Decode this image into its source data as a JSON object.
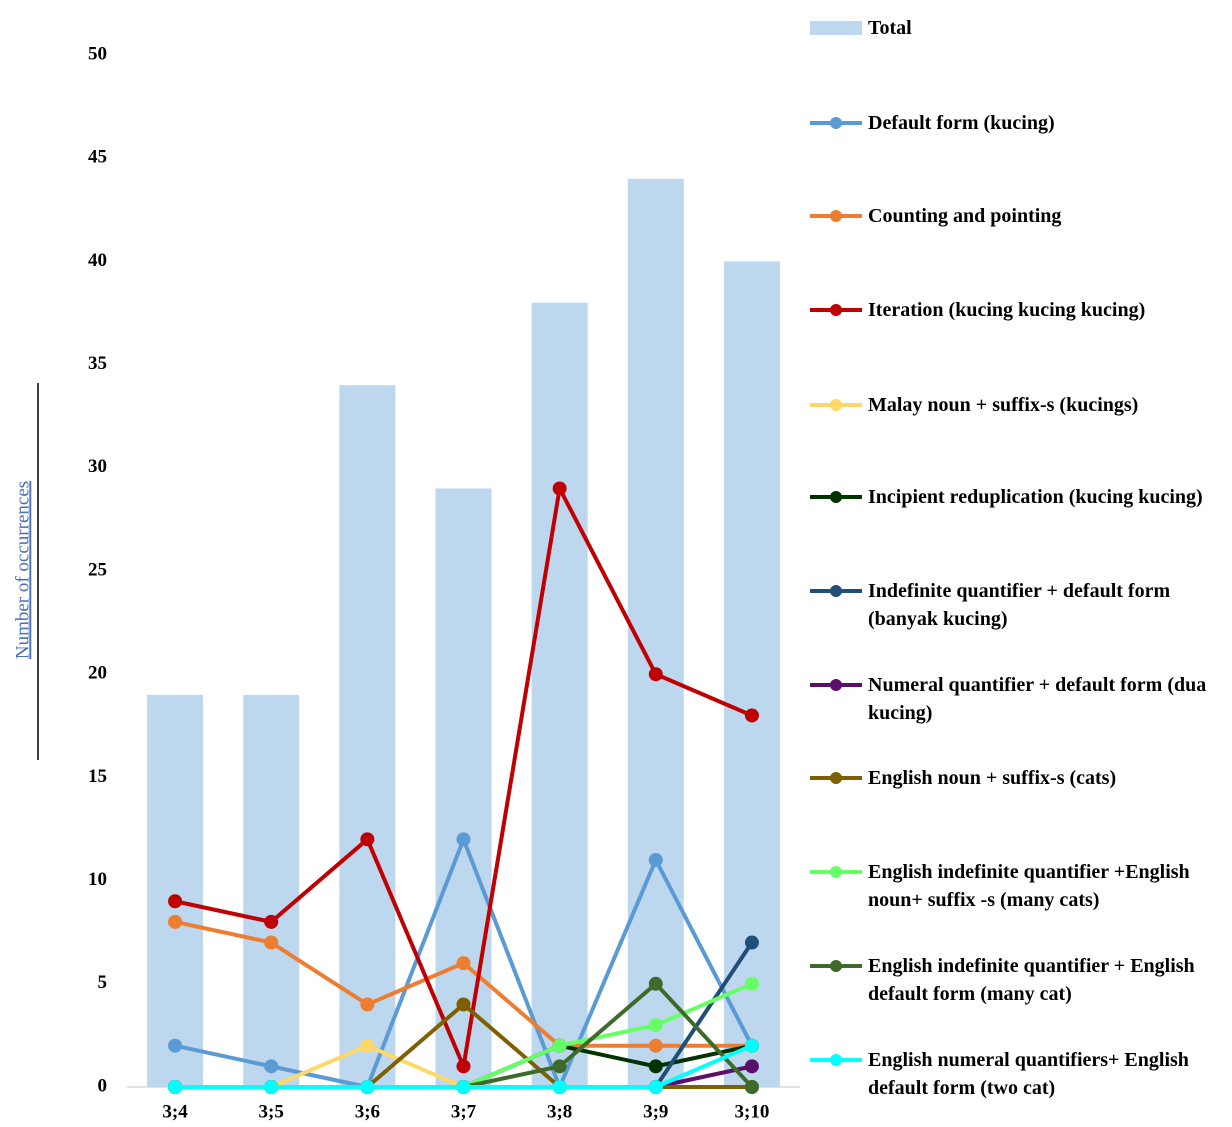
{
  "chart_data": {
    "type": "combo",
    "y_label": "Number of occurrences",
    "categories": [
      "3;4",
      "3;5",
      "3;6",
      "3;7",
      "3;8",
      "3;9",
      "3;10"
    ],
    "ylim": [
      0,
      50
    ],
    "yticks": [
      0,
      5,
      10,
      15,
      20,
      25,
      30,
      35,
      40,
      45,
      50
    ],
    "legend": "right",
    "series": [
      {
        "name": "Total",
        "type": "bar",
        "color": "#bdd7ee",
        "values": [
          19,
          19,
          34,
          29,
          38,
          44,
          40
        ]
      },
      {
        "name": "Default form (kucing)",
        "type": "line",
        "color": "#5b9bd5",
        "values": [
          2,
          1,
          0,
          12,
          0,
          11,
          2
        ]
      },
      {
        "name": "Counting and pointing",
        "type": "line",
        "color": "#ed7d31",
        "values": [
          8,
          7,
          4,
          6,
          2,
          2,
          2
        ]
      },
      {
        "name": "Iteration (kucing kucing kucing)",
        "type": "line",
        "color": "#c00000",
        "values": [
          9,
          8,
          12,
          1,
          29,
          20,
          18
        ]
      },
      {
        "name": "Malay noun + suffix-s (kucings)",
        "type": "line",
        "color": "#ffd966",
        "values": [
          0,
          0,
          2,
          0,
          0,
          0,
          0
        ]
      },
      {
        "name": "Incipient reduplication (kucing kucing)",
        "type": "line",
        "color": "#003300",
        "values": [
          0,
          0,
          0,
          0,
          2,
          1,
          2
        ]
      },
      {
        "name": "Indefinite quantifier + default form (banyak kucing)",
        "type": "line",
        "color": "#1f4e79",
        "values": [
          0,
          0,
          0,
          0,
          0,
          0,
          7
        ]
      },
      {
        "name": "Numeral quantifier + default form (dua kucing)",
        "type": "line",
        "color": "#5b0f6b",
        "values": [
          0,
          0,
          0,
          0,
          0,
          0,
          1
        ]
      },
      {
        "name": "English noun + suffix-s (cats)",
        "type": "line",
        "color": "#7f6000",
        "values": [
          0,
          0,
          0,
          4,
          0,
          0,
          0
        ]
      },
      {
        "name": "English indefinite quantifier +English noun+ suffix -s (many cats)",
        "type": "line",
        "color": "#66ff66",
        "values": [
          0,
          0,
          0,
          0,
          2,
          3,
          5
        ]
      },
      {
        "name": "English indefinite quantifier + English default form (many cat)",
        "type": "line",
        "color": "#3e6b2a",
        "values": [
          0,
          0,
          0,
          0,
          1,
          5,
          0
        ]
      },
      {
        "name": "English numeral quantifiers+ English default form (two cat)",
        "type": "line",
        "color": "#00ffff",
        "values": [
          0,
          0,
          0,
          0,
          0,
          0,
          2
        ]
      }
    ]
  }
}
